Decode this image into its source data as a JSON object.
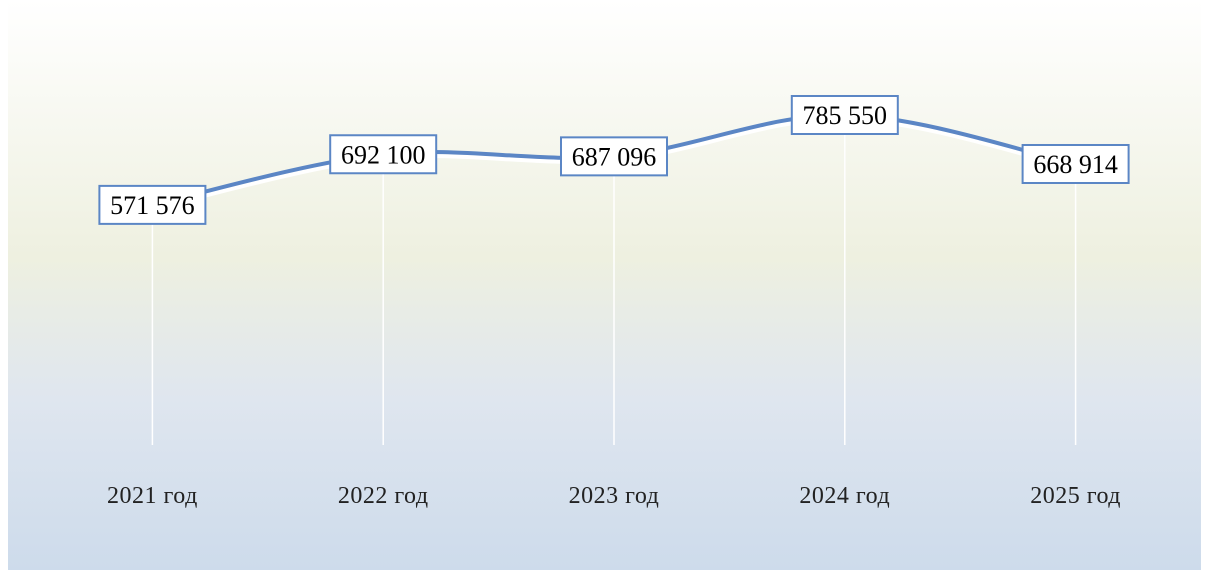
{
  "chart_data": {
    "type": "line",
    "categories": [
      "2021 год",
      "2022 год",
      "2023 год",
      "2024 год",
      "2025 год"
    ],
    "values": [
      571576,
      692100,
      687096,
      785550,
      668914
    ],
    "value_labels": [
      "571 576",
      "692 100",
      "687 096",
      "785 550",
      "668 914"
    ],
    "color": "#5b86c5",
    "smooth": true
  }
}
